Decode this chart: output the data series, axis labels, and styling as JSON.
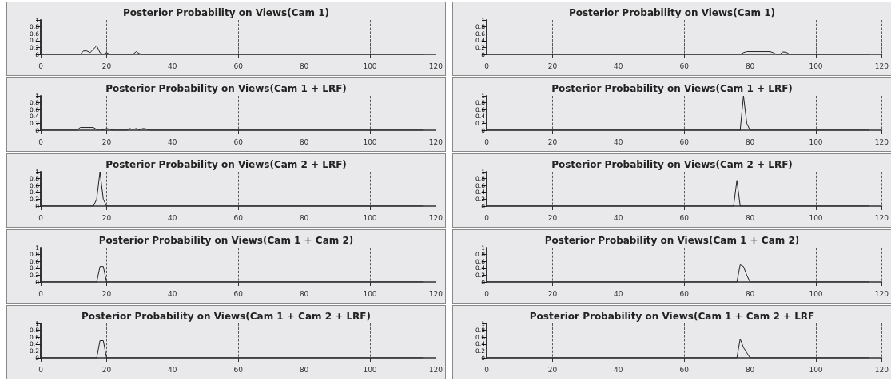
{
  "chart_data": [
    {
      "type": "line",
      "title": "Posterior Probability on Views(Cam 1)",
      "x": [
        0,
        12,
        13,
        14,
        15,
        16,
        17,
        18,
        19,
        20,
        21,
        28,
        29,
        30,
        31,
        116
      ],
      "values": [
        0,
        0,
        0.1,
        0.1,
        0.05,
        0.15,
        0.25,
        0.05,
        0,
        0.05,
        0,
        0,
        0.08,
        0.02,
        0,
        0
      ],
      "color": "#222222",
      "xlim": [
        0,
        120
      ],
      "xticks": [
        0,
        20,
        40,
        60,
        80,
        100,
        120
      ],
      "ylim": [
        0,
        1
      ],
      "yticks": [
        0,
        0.2,
        0.4,
        0.6,
        0.8,
        1
      ],
      "grid": "x",
      "marker": "none",
      "line_style": "solid"
    },
    {
      "type": "line",
      "title": "Posterior Probability on Views(Cam 1 + LRF)",
      "x": [
        0,
        11,
        12,
        16,
        17,
        18,
        19,
        20,
        21,
        22,
        26,
        27,
        28,
        29,
        30,
        31,
        32,
        33,
        116
      ],
      "values": [
        0,
        0,
        0.08,
        0.08,
        0.02,
        0.03,
        0.01,
        0.05,
        0.03,
        0,
        0,
        0.05,
        0.02,
        0.05,
        0.01,
        0.05,
        0.04,
        0,
        0
      ],
      "color": "#222222",
      "xlim": [
        0,
        120
      ],
      "xticks": [
        0,
        20,
        40,
        60,
        80,
        100,
        120
      ],
      "ylim": [
        0,
        1
      ],
      "yticks": [
        0,
        0.2,
        0.4,
        0.6,
        0.8,
        1
      ],
      "grid": "x",
      "marker": "none",
      "line_style": "solid"
    },
    {
      "type": "line",
      "title": "Posterior Probability on Views(Cam 2 + LRF)",
      "x": [
        0,
        16,
        17,
        18,
        19,
        20,
        116
      ],
      "values": [
        0,
        0,
        0.2,
        1,
        0.2,
        0,
        0
      ],
      "color": "#222222",
      "xlim": [
        0,
        120
      ],
      "xticks": [
        0,
        20,
        40,
        60,
        80,
        100,
        120
      ],
      "ylim": [
        0,
        1
      ],
      "yticks": [
        0,
        0.2,
        0.4,
        0.6,
        0.8,
        1
      ],
      "grid": "x",
      "marker": "none",
      "line_style": "solid"
    },
    {
      "type": "line",
      "title": "Posterior Probability on Views(Cam 1 + Cam 2)",
      "x": [
        0,
        17,
        18,
        19,
        20,
        116
      ],
      "values": [
        0,
        0,
        0.45,
        0.45,
        0,
        0
      ],
      "color": "#222222",
      "xlim": [
        0,
        120
      ],
      "xticks": [
        0,
        20,
        40,
        60,
        80,
        100,
        120
      ],
      "ylim": [
        0,
        1
      ],
      "yticks": [
        0,
        0.2,
        0.4,
        0.6,
        0.8,
        1
      ],
      "grid": "x",
      "marker": "none",
      "line_style": "solid"
    },
    {
      "type": "line",
      "title": "Posterior Probability on Views(Cam 1 + Cam 2 + LRF)",
      "x": [
        0,
        17,
        18,
        19,
        20,
        116
      ],
      "values": [
        0,
        0,
        0.5,
        0.5,
        0,
        0
      ],
      "color": "#222222",
      "xlim": [
        0,
        120
      ],
      "xticks": [
        0,
        20,
        40,
        60,
        80,
        100,
        120
      ],
      "ylim": [
        0,
        1
      ],
      "yticks": [
        0,
        0.2,
        0.4,
        0.6,
        0.8,
        1
      ],
      "grid": "x",
      "marker": "none",
      "line_style": "solid"
    },
    {
      "type": "line",
      "title": "Posterior Probability on Views(Cam 1)",
      "x": [
        0,
        77,
        78,
        79,
        80,
        86,
        87,
        88,
        89,
        90,
        91,
        92,
        116
      ],
      "values": [
        0,
        0,
        0.05,
        0.08,
        0.08,
        0.08,
        0.05,
        0,
        0,
        0.07,
        0.06,
        0,
        0
      ],
      "color": "#222222",
      "xlim": [
        0,
        120
      ],
      "xticks": [
        0,
        20,
        40,
        60,
        80,
        100,
        120
      ],
      "ylim": [
        0,
        1
      ],
      "yticks": [
        0,
        0.2,
        0.4,
        0.6,
        0.8,
        1
      ],
      "grid": "x",
      "marker": "none",
      "line_style": "solid"
    },
    {
      "type": "line",
      "title": "Posterior Probability on Views(Cam 1 + LRF)",
      "x": [
        0,
        77,
        78,
        79,
        80,
        116
      ],
      "values": [
        0,
        0,
        1,
        0.2,
        0,
        0
      ],
      "color": "#222222",
      "xlim": [
        0,
        120
      ],
      "xticks": [
        0,
        20,
        40,
        60,
        80,
        100,
        120
      ],
      "ylim": [
        0,
        1
      ],
      "yticks": [
        0,
        0.2,
        0.4,
        0.6,
        0.8,
        1
      ],
      "grid": "x",
      "marker": "none",
      "line_style": "solid"
    },
    {
      "type": "line",
      "title": "Posterior Probability on Views(Cam 2 + LRF)",
      "x": [
        0,
        75,
        76,
        77,
        116
      ],
      "values": [
        0,
        0,
        0.75,
        0,
        0
      ],
      "color": "#222222",
      "xlim": [
        0,
        120
      ],
      "xticks": [
        0,
        20,
        40,
        60,
        80,
        100,
        120
      ],
      "ylim": [
        0,
        1
      ],
      "yticks": [
        0,
        0.2,
        0.4,
        0.6,
        0.8,
        1
      ],
      "grid": "x",
      "marker": "none",
      "line_style": "solid"
    },
    {
      "type": "line",
      "title": "Posterior Probability on Views(Cam 1 + Cam 2)",
      "x": [
        0,
        76,
        77,
        78,
        79,
        80,
        116
      ],
      "values": [
        0,
        0,
        0.5,
        0.45,
        0.2,
        0,
        0
      ],
      "color": "#222222",
      "xlim": [
        0,
        120
      ],
      "xticks": [
        0,
        20,
        40,
        60,
        80,
        100,
        120
      ],
      "ylim": [
        0,
        1
      ],
      "yticks": [
        0,
        0.2,
        0.4,
        0.6,
        0.8,
        1
      ],
      "grid": "x",
      "marker": "none",
      "line_style": "solid"
    },
    {
      "type": "line",
      "title": "Posterior Probability on Views(Cam 1 + Cam 2 + LRF",
      "x": [
        0,
        76,
        77,
        78,
        79,
        80,
        116
      ],
      "values": [
        0,
        0,
        0.55,
        0.3,
        0.15,
        0,
        0
      ],
      "color": "#222222",
      "xlim": [
        0,
        120
      ],
      "xticks": [
        0,
        20,
        40,
        60,
        80,
        100,
        120
      ],
      "ylim": [
        0,
        1
      ],
      "yticks": [
        0,
        0.2,
        0.4,
        0.6,
        0.8,
        1
      ],
      "grid": "x",
      "marker": "none",
      "line_style": "solid"
    }
  ]
}
